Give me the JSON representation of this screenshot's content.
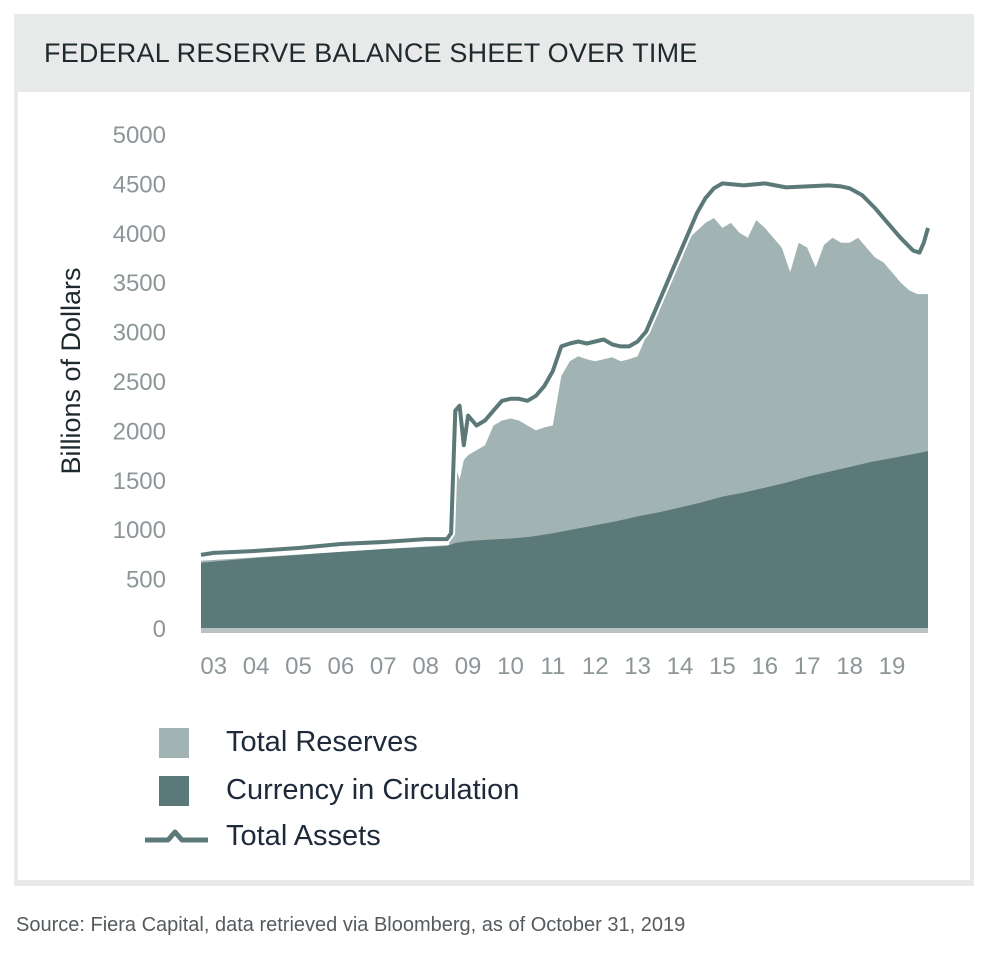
{
  "title": "FEDERAL RESERVE BALANCE SHEET OVER TIME",
  "source": "Source: Fiera Capital, data retrieved via Bloomberg, as of October 31, 2019",
  "colors": {
    "reserves": "#a1b3b2",
    "currency": "#5b7978",
    "assets": "#5b7978",
    "axis_text": "#8d9699",
    "label_text": "#1e2a3a"
  },
  "legend": [
    {
      "key": "reserves",
      "label": "Total Reserves",
      "shape": "square"
    },
    {
      "key": "currency",
      "label": "Currency in Circulation",
      "shape": "square"
    },
    {
      "key": "assets",
      "label": "Total Assets",
      "shape": "line"
    }
  ],
  "chart_data": {
    "type": "area",
    "title": "FEDERAL RESERVE BALANCE SHEET OVER TIME",
    "ylabel": "Billions of Dollars",
    "xlabel": "",
    "ylim": [
      0,
      5000
    ],
    "xlim": [
      2002.7,
      2019.85
    ],
    "yticks": [
      0,
      500,
      1000,
      1500,
      2000,
      2500,
      3000,
      3500,
      4000,
      4500,
      5000
    ],
    "xticks": [
      {
        "label": "03",
        "x": 2003
      },
      {
        "label": "04",
        "x": 2004
      },
      {
        "label": "05",
        "x": 2005
      },
      {
        "label": "06",
        "x": 2006
      },
      {
        "label": "07",
        "x": 2007
      },
      {
        "label": "08",
        "x": 2008
      },
      {
        "label": "09",
        "x": 2009
      },
      {
        "label": "10",
        "x": 2010
      },
      {
        "label": "11",
        "x": 2011
      },
      {
        "label": "12",
        "x": 2012
      },
      {
        "label": "13",
        "x": 2013
      },
      {
        "label": "14",
        "x": 2014
      },
      {
        "label": "15",
        "x": 2015
      },
      {
        "label": "16",
        "x": 2016
      },
      {
        "label": "17",
        "x": 2017
      },
      {
        "label": "18",
        "x": 2018
      },
      {
        "label": "19",
        "x": 2019
      }
    ],
    "grid": false,
    "legend_position": "bottom-left",
    "series": [
      {
        "name": "Currency in Circulation",
        "type": "area",
        "x": [
          2002.7,
          2003.5,
          2004.0,
          2005.0,
          2006.0,
          2007.0,
          2008.0,
          2008.5,
          2008.7,
          2009.0,
          2009.5,
          2010.0,
          2010.5,
          2011.0,
          2011.5,
          2012.0,
          2012.5,
          2013.0,
          2013.5,
          2014.0,
          2014.5,
          2015.0,
          2015.5,
          2016.0,
          2016.5,
          2017.0,
          2017.5,
          2018.0,
          2018.5,
          2019.0,
          2019.5,
          2019.85
        ],
        "values": [
          660,
          690,
          710,
          740,
          770,
          800,
          820,
          830,
          860,
          880,
          895,
          905,
          925,
          960,
          1000,
          1040,
          1080,
          1130,
          1170,
          1220,
          1270,
          1330,
          1370,
          1420,
          1470,
          1530,
          1580,
          1630,
          1680,
          1720,
          1760,
          1790
        ]
      },
      {
        "name": "Total Reserves",
        "type": "area",
        "x": [
          2002.7,
          2008.55,
          2008.62,
          2008.7,
          2008.8,
          2008.9,
          2009.0,
          2009.2,
          2009.4,
          2009.6,
          2009.8,
          2010.0,
          2010.2,
          2010.4,
          2010.6,
          2010.8,
          2011.0,
          2011.2,
          2011.4,
          2011.6,
          2011.8,
          2012.0,
          2012.2,
          2012.4,
          2012.6,
          2012.8,
          2013.0,
          2013.2,
          2013.4,
          2013.6,
          2013.8,
          2014.0,
          2014.3,
          2014.6,
          2014.8,
          2015.0,
          2015.2,
          2015.4,
          2015.6,
          2015.8,
          2016.0,
          2016.2,
          2016.4,
          2016.6,
          2016.8,
          2017.0,
          2017.2,
          2017.4,
          2017.6,
          2017.8,
          2018.0,
          2018.2,
          2018.4,
          2018.6,
          2018.8,
          2019.0,
          2019.2,
          2019.4,
          2019.6,
          2019.85
        ],
        "values": [
          680,
          840,
          1200,
          1650,
          1500,
          1700,
          1750,
          1800,
          1850,
          2050,
          2100,
          2120,
          2100,
          2050,
          2000,
          2030,
          2050,
          2550,
          2700,
          2750,
          2720,
          2700,
          2720,
          2740,
          2700,
          2720,
          2750,
          2950,
          3200,
          3400,
          3700,
          3850,
          3980,
          4100,
          4150,
          4050,
          4100,
          4000,
          3950,
          4130,
          4050,
          3950,
          3850,
          3600,
          3900,
          3850,
          3650,
          3880,
          3950,
          3900,
          3900,
          3950,
          3850,
          3750,
          3700,
          3600,
          3500,
          3420,
          3380,
          3380
        ]
      },
      {
        "name": "Total Assets",
        "type": "line",
        "x": [
          2002.7,
          2003.0,
          2004.0,
          2005.0,
          2006.0,
          2007.0,
          2008.0,
          2008.5,
          2008.6,
          2008.7,
          2008.8,
          2008.9,
          2009.0,
          2009.2,
          2009.4,
          2009.6,
          2009.8,
          2010.0,
          2010.2,
          2010.4,
          2010.6,
          2010.8,
          2011.0,
          2011.2,
          2011.4,
          2011.6,
          2011.8,
          2012.0,
          2012.2,
          2012.4,
          2012.6,
          2012.8,
          2013.0,
          2013.2,
          2013.4,
          2013.6,
          2013.8,
          2014.0,
          2014.2,
          2014.4,
          2014.6,
          2014.8,
          2015.0,
          2015.5,
          2016.0,
          2016.5,
          2017.0,
          2017.5,
          2017.8,
          2018.0,
          2018.3,
          2018.6,
          2018.9,
          2019.2,
          2019.5,
          2019.65,
          2019.75,
          2019.85
        ],
        "values": [
          740,
          760,
          780,
          810,
          850,
          870,
          900,
          900,
          960,
          2200,
          2250,
          1850,
          2150,
          2050,
          2100,
          2200,
          2300,
          2320,
          2320,
          2300,
          2350,
          2450,
          2600,
          2850,
          2880,
          2900,
          2880,
          2900,
          2920,
          2870,
          2850,
          2850,
          2900,
          3000,
          3200,
          3400,
          3600,
          3800,
          4000,
          4200,
          4350,
          4450,
          4500,
          4480,
          4500,
          4460,
          4470,
          4480,
          4470,
          4450,
          4380,
          4250,
          4100,
          3950,
          3820,
          3800,
          3900,
          4050
        ]
      }
    ]
  }
}
